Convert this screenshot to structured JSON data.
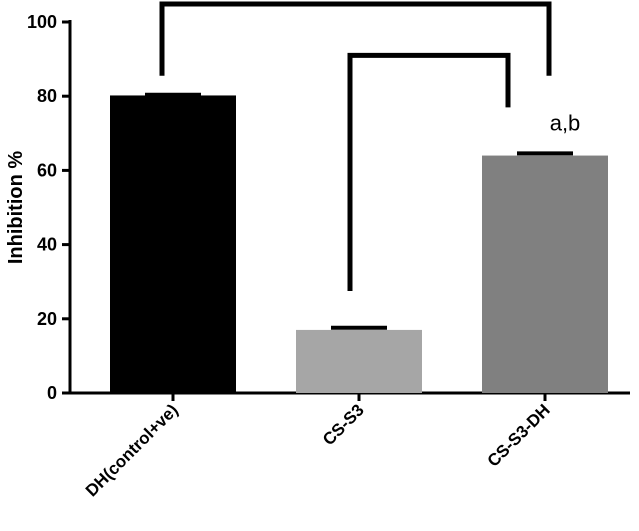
{
  "chart_data": {
    "type": "bar",
    "title": "",
    "xlabel": "",
    "ylabel": "Inhibition %",
    "ylim": [
      0,
      100
    ],
    "yticks": [
      0,
      20,
      40,
      60,
      80,
      100
    ],
    "categories": [
      "DH(control+ve)",
      "CS-S3",
      "CS-S3-DH"
    ],
    "values": [
      80.2,
      17.0,
      64.0
    ],
    "errors": [
      0.2,
      0.6,
      0.6
    ],
    "colors": [
      "#000000",
      "#a6a6a6",
      "#808080"
    ],
    "annotations": [
      {
        "category_index": 2,
        "text": "a,b"
      }
    ],
    "significance_brackets": [
      {
        "from_index": 0,
        "to_index": 2,
        "level": 100
      },
      {
        "from_index": 1,
        "to_index": 2,
        "level": 91
      }
    ],
    "grid": false
  }
}
